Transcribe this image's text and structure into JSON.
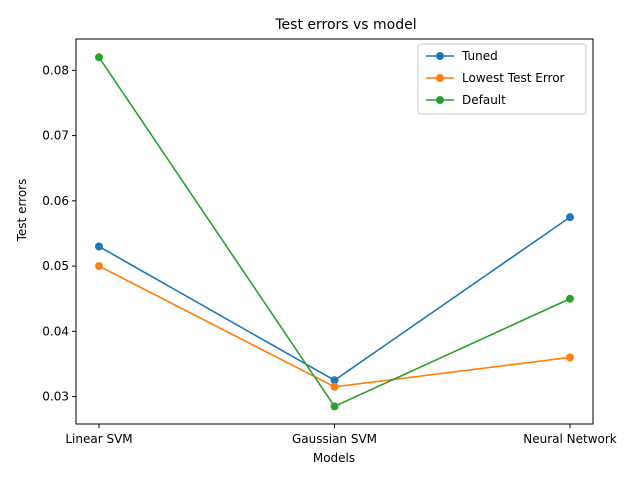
{
  "chart_data": {
    "type": "line",
    "title": "Test errors vs model",
    "xlabel": "Models",
    "ylabel": "Test errors",
    "categories": [
      "Linear SVM",
      "Gaussian SVM",
      "Neural Network"
    ],
    "ylim": [
      0.0258,
      0.0848
    ],
    "yticks": [
      0.03,
      0.04,
      0.05,
      0.06,
      0.07,
      0.08
    ],
    "ytick_labels": [
      "0.03",
      "0.04",
      "0.05",
      "0.06",
      "0.07",
      "0.08"
    ],
    "grid": false,
    "legend_position": "top-right",
    "series": [
      {
        "name": "Tuned",
        "values": [
          0.053,
          0.0325,
          0.0575
        ],
        "color": "#1f77b4"
      },
      {
        "name": "Lowest Test Error",
        "values": [
          0.05,
          0.0315,
          0.036
        ],
        "color": "#ff7f0e"
      },
      {
        "name": "Default",
        "values": [
          0.082,
          0.0285,
          0.045
        ],
        "color": "#2ca02c"
      }
    ]
  }
}
